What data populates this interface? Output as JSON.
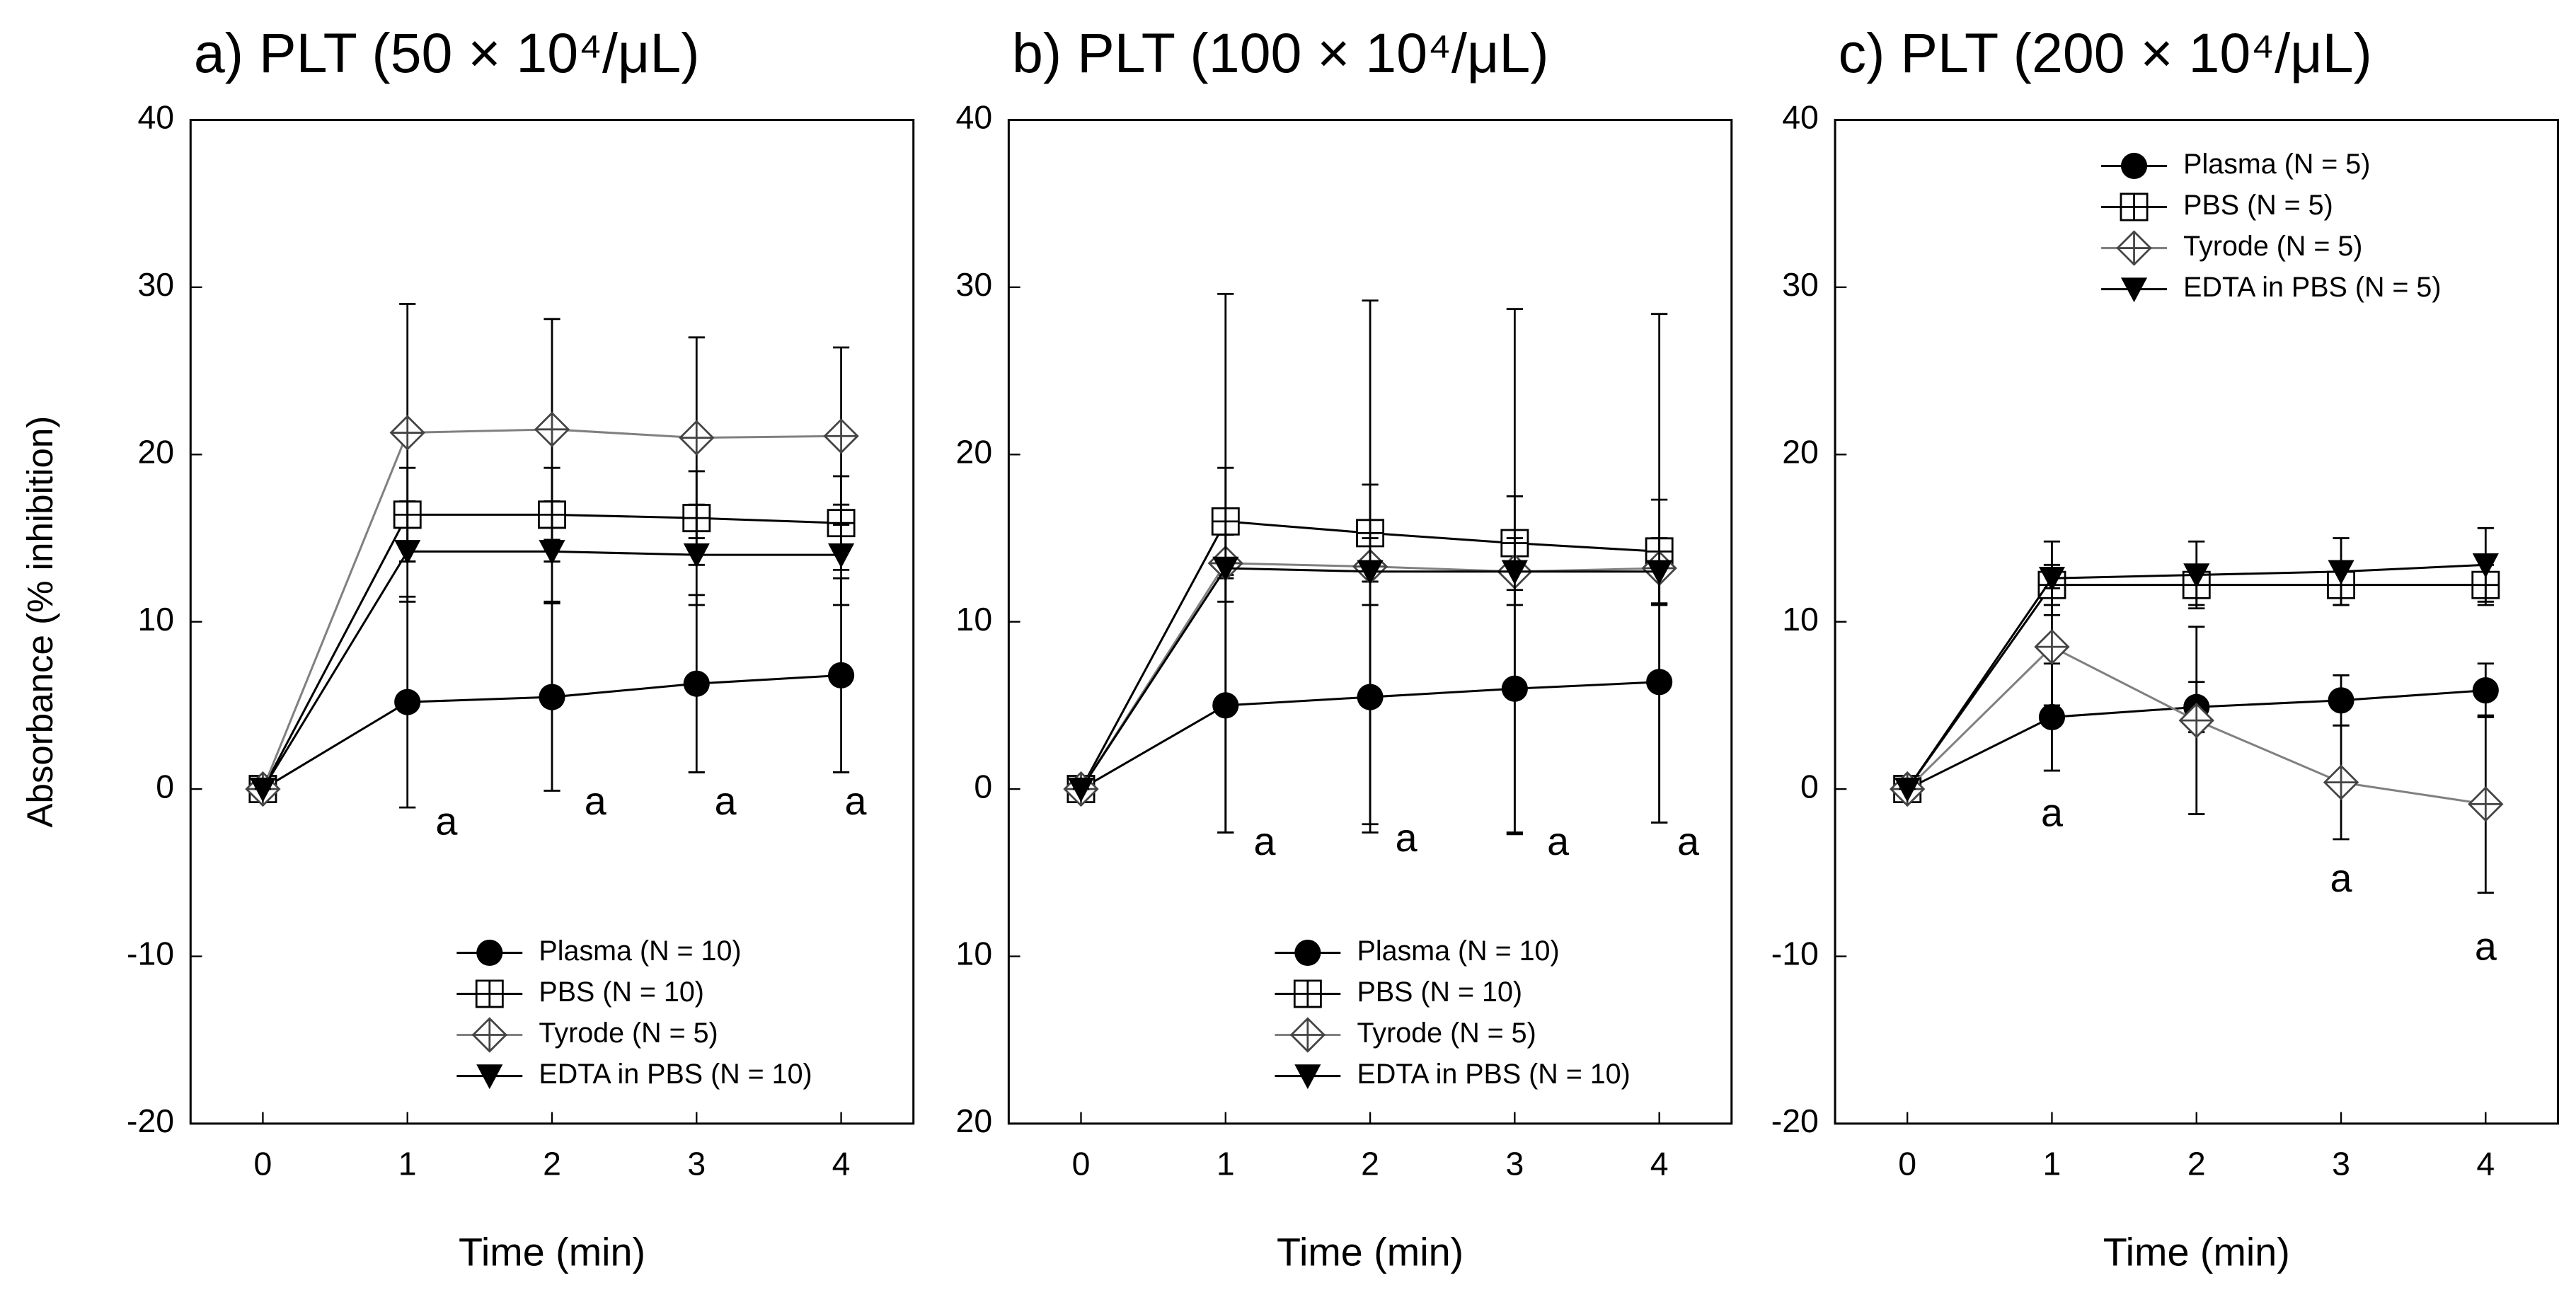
{
  "chart_data": [
    {
      "type": "line",
      "title": "a) PLT (50 × 10⁴/μL)",
      "x_label": "Time (min)",
      "y_label": "Absorbance (% inhibition)",
      "x": [
        0,
        1,
        2,
        3,
        4
      ],
      "xlim": [
        -0.5,
        4.5
      ],
      "xticks": [
        0,
        1,
        2,
        3,
        4
      ],
      "ylim": [
        -20,
        40
      ],
      "yticks": [
        -20,
        -10,
        0,
        10,
        20,
        30,
        40
      ],
      "legend": "lower right",
      "series": [
        {
          "name": "Plasma (N = 10)",
          "color": "#000000",
          "marker": "circle",
          "values": [
            0,
            5.2,
            5.5,
            6.3,
            6.8
          ],
          "errors": [
            0,
            6.3,
            5.6,
            5.3,
            5.8
          ]
        },
        {
          "name": "PBS (N = 10)",
          "color": "#000000",
          "marker": "square",
          "values": [
            0,
            16.4,
            16.4,
            16.2,
            15.9
          ],
          "errors": [
            0,
            2.8,
            2.8,
            2.8,
            2.8
          ]
        },
        {
          "name": "Tyrode (N = 5)",
          "color": "#808080",
          "marker": "diamond",
          "values": [
            0,
            21.3,
            21.5,
            21.0,
            21.1
          ],
          "errors": [
            0,
            7.7,
            6.6,
            6.0,
            5.3
          ]
        },
        {
          "name": "EDTA in PBS (N = 10)",
          "color": "#000000",
          "marker": "triangle",
          "values": [
            0,
            14.2,
            14.2,
            14.0,
            14.0
          ],
          "errors": [
            0,
            3.0,
            3.0,
            3.0,
            3.0
          ]
        }
      ],
      "annotations": [
        {
          "text": "a",
          "x": 1.27,
          "y": -2.1
        },
        {
          "text": "a",
          "x": 2.3,
          "y": -0.9
        },
        {
          "text": "a",
          "x": 3.2,
          "y": -0.9
        },
        {
          "text": "a",
          "x": 4.1,
          "y": -0.9
        }
      ]
    },
    {
      "type": "line",
      "title": "b) PLT (100 × 10⁴/μL)",
      "x_label": "Time (min)",
      "x": [
        0,
        1,
        2,
        3,
        4
      ],
      "xlim": [
        -0.5,
        4.5
      ],
      "xticks": [
        0,
        1,
        2,
        3,
        4
      ],
      "ylim": [
        -20,
        40
      ],
      "yticks": [
        {
          "value": -20,
          "label": "20"
        },
        {
          "value": -10,
          "label": "10"
        },
        0,
        10,
        20,
        30,
        40
      ],
      "legend": "lower right",
      "series": [
        {
          "name": "Plasma (N = 10)",
          "color": "#000000",
          "marker": "circle",
          "values": [
            0,
            5.0,
            5.5,
            6.0,
            6.4
          ],
          "errors": [
            0,
            7.6,
            7.6,
            8.6,
            8.4
          ]
        },
        {
          "name": "PBS (N = 10)",
          "color": "#000000",
          "marker": "square",
          "values": [
            0,
            16.0,
            15.3,
            14.7,
            14.2
          ],
          "errors": [
            0,
            3.2,
            2.9,
            2.8,
            3.1
          ]
        },
        {
          "name": "Tyrode (N = 5)",
          "color": "#808080",
          "marker": "diamond",
          "values": [
            0,
            13.5,
            13.3,
            13.0,
            13.2
          ],
          "errors": [
            0,
            16.1,
            15.9,
            15.7,
            15.2
          ]
        },
        {
          "name": "EDTA in PBS (N = 10)",
          "color": "#000000",
          "marker": "triangle",
          "values": [
            0,
            13.2,
            13.0,
            13.0,
            13.0
          ],
          "errors": [
            0,
            2.0,
            2.0,
            2.0,
            2.0
          ]
        }
      ],
      "annotations": [
        {
          "text": "a",
          "x": 1.27,
          "y": -3.3
        },
        {
          "text": "a",
          "x": 2.25,
          "y": -3.1
        },
        {
          "text": "a",
          "x": 3.3,
          "y": -3.3
        },
        {
          "text": "a",
          "x": 4.2,
          "y": -3.3
        }
      ]
    },
    {
      "type": "line",
      "title": "c) PLT (200 × 10⁴/μL)",
      "x_label": "Time (min)",
      "x": [
        0,
        1,
        2,
        3,
        4
      ],
      "xlim": [
        -0.5,
        4.5
      ],
      "xticks": [
        0,
        1,
        2,
        3,
        4
      ],
      "ylim": [
        -20,
        40
      ],
      "yticks": [
        -20,
        -10,
        0,
        10,
        20,
        30,
        40
      ],
      "legend": "upper right",
      "series": [
        {
          "name": "Plasma (N = 5)",
          "color": "#000000",
          "marker": "circle",
          "values": [
            0,
            4.3,
            4.9,
            5.3,
            5.9
          ],
          "errors": [
            0,
            3.2,
            1.5,
            1.5,
            1.6
          ]
        },
        {
          "name": "PBS (N = 5)",
          "color": "#000000",
          "marker": "square",
          "values": [
            0,
            12.2,
            12.2,
            12.2,
            12.2
          ],
          "errors": [
            0,
            1.2,
            1.2,
            1.2,
            1.2
          ]
        },
        {
          "name": "Tyrode (N = 5)",
          "color": "#808080",
          "marker": "diamond",
          "values": [
            0,
            8.5,
            4.1,
            0.4,
            -0.9
          ],
          "errors": [
            0,
            3.5,
            5.6,
            3.4,
            5.3
          ]
        },
        {
          "name": "EDTA in PBS (N = 5)",
          "color": "#000000",
          "marker": "triangle",
          "values": [
            0,
            12.6,
            12.8,
            13.0,
            13.4
          ],
          "errors": [
            0,
            2.2,
            2.0,
            2.0,
            2.2
          ]
        }
      ],
      "annotations": [
        {
          "text": "a",
          "x": 1,
          "y": -1.6
        },
        {
          "text": "a",
          "x": 3,
          "y": -5.5
        },
        {
          "text": "a",
          "x": 4,
          "y": -9.6
        }
      ]
    }
  ]
}
